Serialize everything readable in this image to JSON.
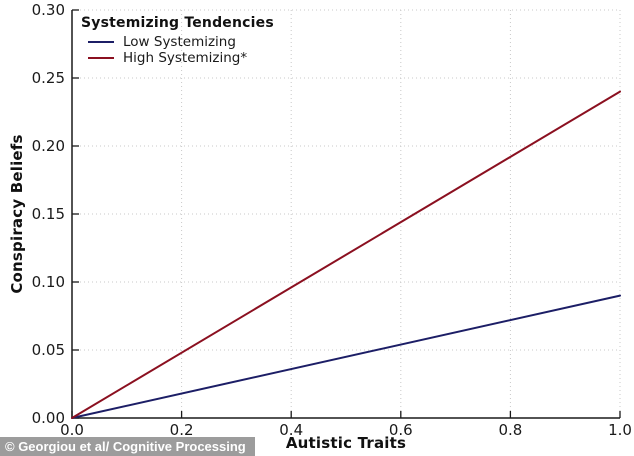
{
  "chart_data": {
    "type": "line",
    "title": "",
    "xlabel": "Autistic Traits",
    "ylabel": "Conspiracy Beliefs",
    "xlim": [
      0.0,
      1.0
    ],
    "ylim": [
      0.0,
      0.3
    ],
    "xticks": [
      0.0,
      0.2,
      0.4,
      0.6,
      0.8,
      1.0
    ],
    "xtick_labels": [
      "0.0",
      "0.2",
      "0.4",
      "0.6",
      "0.8",
      "1.0"
    ],
    "yticks": [
      0.0,
      0.05,
      0.1,
      0.15,
      0.2,
      0.25,
      0.3
    ],
    "ytick_labels": [
      "0.00",
      "0.05",
      "0.10",
      "0.15",
      "0.20",
      "0.25",
      "0.30"
    ],
    "grid": true,
    "grid_style": "dotted",
    "tick_direction": "in",
    "legend": {
      "title": "Systemizing Tendencies",
      "position": "top-left",
      "frame": false
    },
    "series": [
      {
        "name": "Low Systemizing",
        "color": "#1c1e66",
        "x": [
          0.0,
          1.0
        ],
        "values": [
          0.0,
          0.09
        ]
      },
      {
        "name": "High Systemizing*",
        "color": "#8b1020",
        "x": [
          0.0,
          1.0
        ],
        "values": [
          0.0,
          0.24
        ]
      }
    ]
  },
  "style_colors": {
    "grid": "#c9c9c9",
    "spine": "#1a1a1a",
    "tick_label": "#1a1a1a",
    "background": "#ffffff"
  },
  "watermark": {
    "text": "© Georgiou et al/ Cognitive Processing",
    "bg": "#9c9c9c",
    "fg": "#ffffff"
  }
}
